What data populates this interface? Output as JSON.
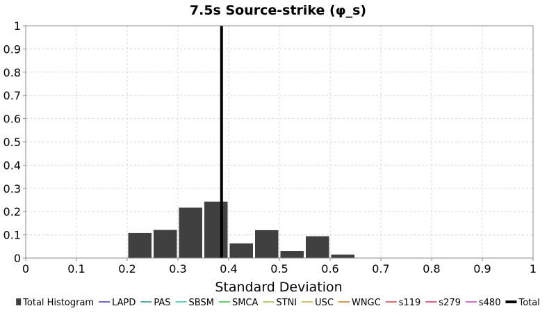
{
  "chart_data": {
    "type": "bar",
    "title": "7.5s Source-strike (φ_s)",
    "xlabel": "Standard Deviation",
    "ylabel": "",
    "xlim": [
      0,
      1
    ],
    "ylim": [
      0,
      1
    ],
    "x_ticks": [
      "0",
      "0.1",
      "0.2",
      "0.3",
      "0.4",
      "0.5",
      "0.6",
      "0.7",
      "0.8",
      "0.9",
      "1"
    ],
    "y_ticks": [
      "0",
      "0.1",
      "0.2",
      "0.3",
      "0.4",
      "0.5",
      "0.6",
      "0.7",
      "0.8",
      "0.9",
      "1"
    ],
    "grid": true,
    "bin_width": 0.05,
    "bar_color": "#404040",
    "histogram": {
      "name": "Total Histogram",
      "bins": [
        {
          "x0": 0.2,
          "x1": 0.25,
          "value": 0.108
        },
        {
          "x0": 0.25,
          "x1": 0.3,
          "value": 0.121
        },
        {
          "x0": 0.3,
          "x1": 0.35,
          "value": 0.217
        },
        {
          "x0": 0.35,
          "x1": 0.4,
          "value": 0.243
        },
        {
          "x0": 0.4,
          "x1": 0.45,
          "value": 0.063
        },
        {
          "x0": 0.45,
          "x1": 0.5,
          "value": 0.12
        },
        {
          "x0": 0.5,
          "x1": 0.55,
          "value": 0.03
        },
        {
          "x0": 0.55,
          "x1": 0.6,
          "value": 0.094
        },
        {
          "x0": 0.6,
          "x1": 0.65,
          "value": 0.015
        }
      ]
    },
    "total_line": {
      "name": "Total",
      "x": 0.386,
      "color": "#000000"
    },
    "legend_placement": "bottom",
    "legend": [
      {
        "name": "Total Histogram",
        "kind": "box",
        "color": "#404040"
      },
      {
        "name": "LAPD",
        "kind": "line",
        "color": "#3a3ab0"
      },
      {
        "name": "PAS",
        "kind": "line",
        "color": "#2a8a8a"
      },
      {
        "name": "SBSM",
        "kind": "line",
        "color": "#3ec0b0"
      },
      {
        "name": "SMCA",
        "kind": "line",
        "color": "#3cb83c"
      },
      {
        "name": "STNI",
        "kind": "line",
        "color": "#9ac03c"
      },
      {
        "name": "USC",
        "kind": "line",
        "color": "#c8a840"
      },
      {
        "name": "WNGC",
        "kind": "line",
        "color": "#c07828"
      },
      {
        "name": "s119",
        "kind": "line",
        "color": "#d04040"
      },
      {
        "name": "s279",
        "kind": "line",
        "color": "#c83060"
      },
      {
        "name": "s480",
        "kind": "line",
        "color": "#c040c0"
      },
      {
        "name": "Total",
        "kind": "thick",
        "color": "#000000"
      }
    ]
  }
}
